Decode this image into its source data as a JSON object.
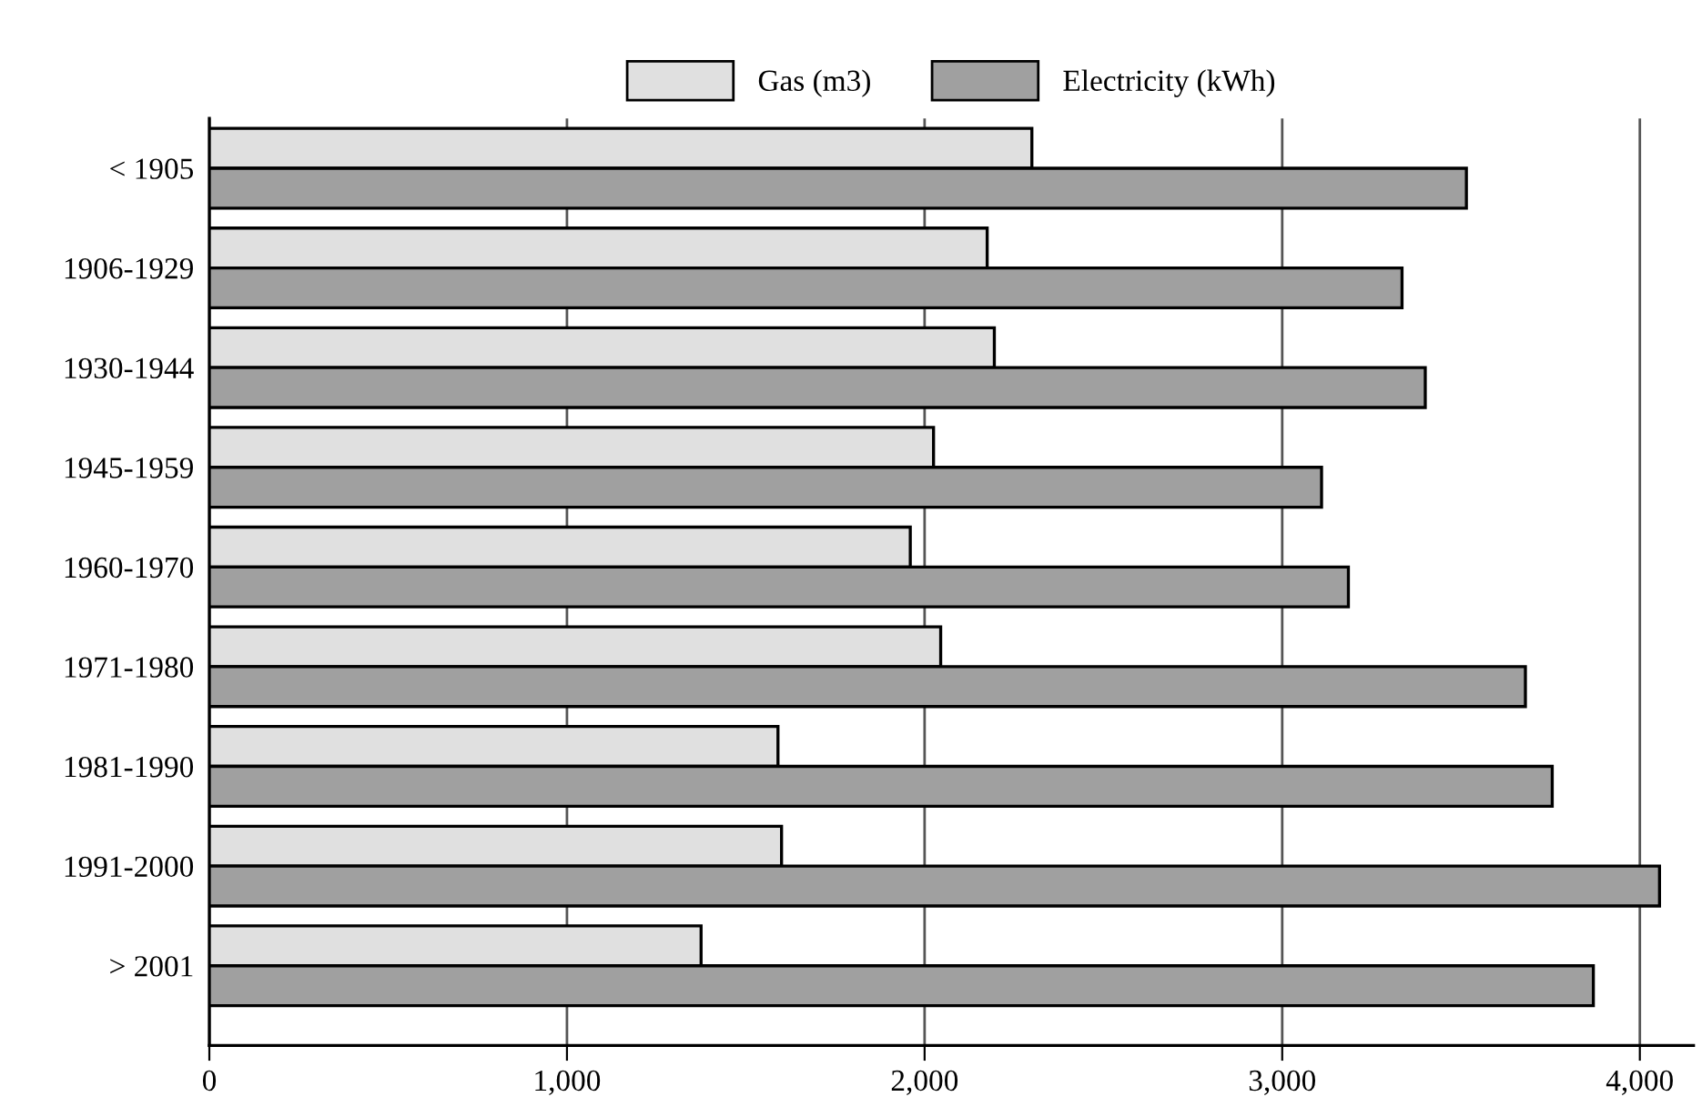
{
  "chart_data": {
    "type": "bar",
    "orientation": "horizontal",
    "categories": [
      "< 1905",
      "1906-1929",
      "1930-1944",
      "1945-1959",
      "1960-1970",
      "1971-1980",
      "1981-1990",
      "1991-2000",
      "> 2001"
    ],
    "series": [
      {
        "name": "Gas (m3)",
        "color": "#e0e0e0",
        "values": [
          2300,
          2175,
          2195,
          2025,
          1960,
          2045,
          1590,
          1600,
          1375
        ]
      },
      {
        "name": "Electricity (kWh)",
        "color": "#a0a0a0",
        "values": [
          3515,
          3335,
          3400,
          3110,
          3185,
          3680,
          3755,
          4055,
          3870
        ]
      }
    ],
    "xlim": [
      0,
      4150
    ],
    "xticks": [
      {
        "value": 0,
        "label": "0"
      },
      {
        "value": 1000,
        "label": "1,000"
      },
      {
        "value": 2000,
        "label": "2,000"
      },
      {
        "value": 3000,
        "label": "3,000"
      },
      {
        "value": 4000,
        "label": "4,000"
      }
    ],
    "grid": "x",
    "legend": "top"
  }
}
